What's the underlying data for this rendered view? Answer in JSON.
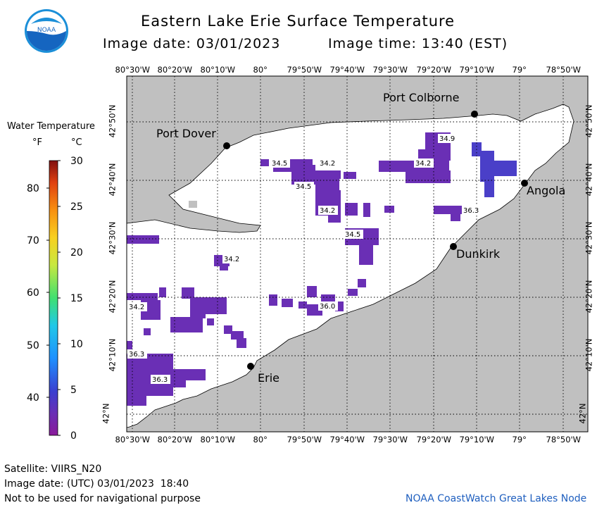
{
  "header": {
    "title": "Eastern Lake Erie Surface Temperature",
    "image_date": "Image date: 03/01/2023",
    "image_time": "Image time: 13:40 (EST)"
  },
  "logo": {
    "text": "NOAA"
  },
  "colorbar": {
    "title": "Water Temperature",
    "unit_f": "°F",
    "unit_c": "°C",
    "f_ticks": [
      "80",
      "70",
      "60",
      "50",
      "40"
    ],
    "c_ticks": [
      "30",
      "25",
      "20",
      "15",
      "10",
      "5",
      "0"
    ]
  },
  "axes": {
    "lon_labels": [
      "80°30'W",
      "80°20'W",
      "80°10'W",
      "80°",
      "79°50'W",
      "79°40'W",
      "79°30'W",
      "79°20'W",
      "79°10'W",
      "79°",
      "78°50'W"
    ],
    "lat_labels": [
      "42°50'N",
      "42°40'N",
      "42°30'N",
      "42°20'N",
      "42°10'N",
      "42°N"
    ]
  },
  "cities": [
    {
      "name": "Port Colborne"
    },
    {
      "name": "Port Dover"
    },
    {
      "name": "Angola"
    },
    {
      "name": "Dunkirk"
    },
    {
      "name": "Erie"
    }
  ],
  "temp_labels": [
    "34.9",
    "34.5",
    "34.2",
    "34.2",
    "34.5",
    "34.2",
    "36.3",
    "34.5",
    "34.2",
    "34.2",
    "36.0",
    "36.3",
    "36.3"
  ],
  "footer": {
    "satellite": "Satellite: VIIRS_N20",
    "utc_date": "Image date: (UTC) 03/01/2023  18:40",
    "disclaimer": "Not to be used for navigational purpose",
    "credit": "NOAA CoastWatch Great Lakes Node"
  },
  "colors": {
    "land": "#c0c0c0",
    "water": "#ffffff",
    "cold_purple": "#6a2fb5",
    "cold_blue": "#4a3fc8"
  }
}
